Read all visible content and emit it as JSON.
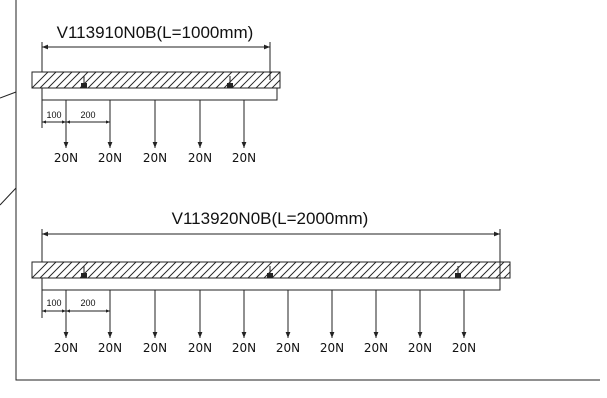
{
  "beams": [
    {
      "id": "v113910",
      "title": "V113910N0B(L=1000mm)",
      "dim_first": "100",
      "dim_second": "200",
      "loads": [
        "20N",
        "20N",
        "20N",
        "20N",
        "20N"
      ]
    },
    {
      "id": "v113920",
      "title": "V113920N0B(L=2000mm)",
      "dim_first": "100",
      "dim_second": "200",
      "loads": [
        "20N",
        "20N",
        "20N",
        "20N",
        "20N",
        "20N",
        "20N",
        "20N",
        "20N",
        "20N"
      ]
    }
  ],
  "colors": {
    "line": "#222222",
    "background": "#ffffff"
  }
}
